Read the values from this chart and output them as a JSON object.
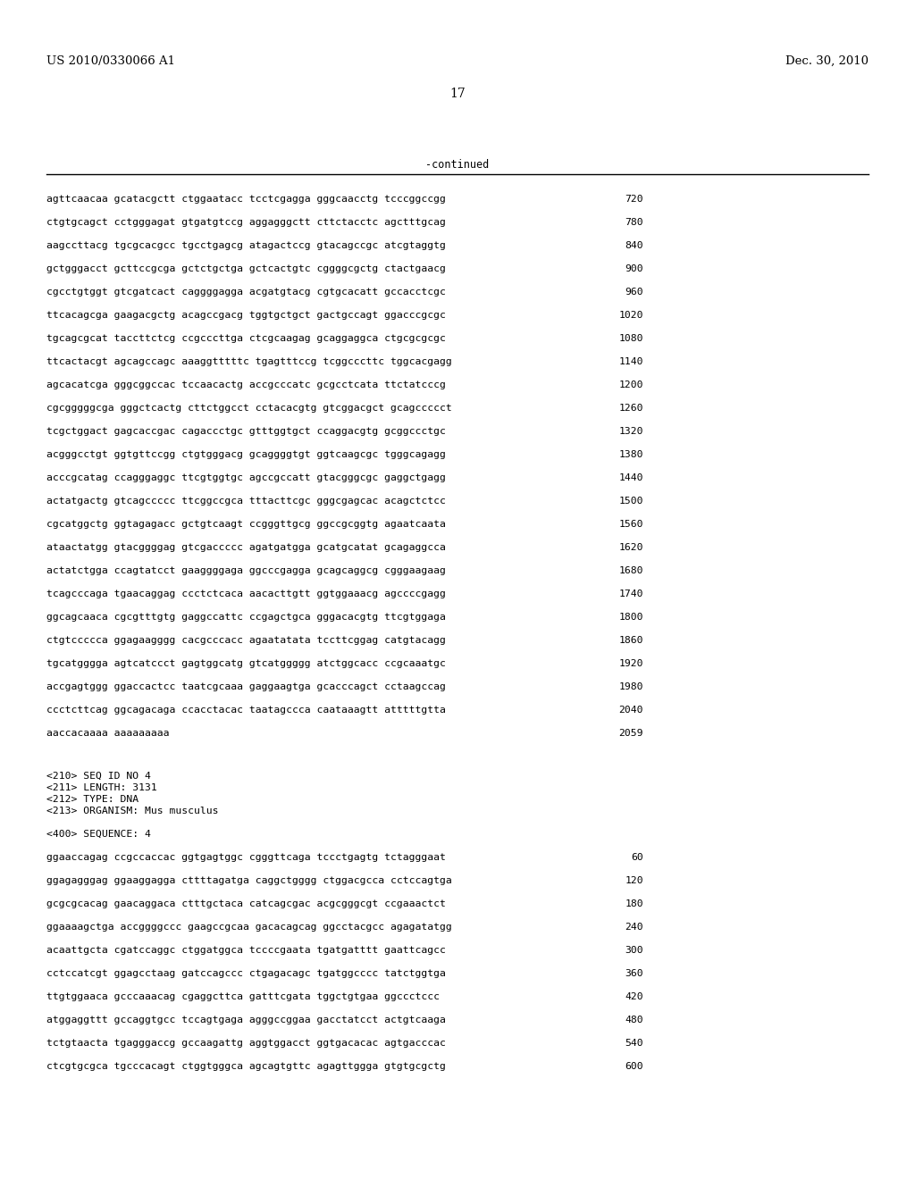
{
  "patent_number": "US 2010/0330066 A1",
  "date": "Dec. 30, 2010",
  "page_number": "17",
  "continued_label": "-continued",
  "background_color": "#ffffff",
  "text_color": "#000000",
  "sequence_lines": [
    {
      "seq": "agttcaacaa gcatacgctt ctggaatacc tcctcgagga gggcaacctg tcccggccgg",
      "num": "720"
    },
    {
      "seq": "ctgtgcagct cctgggagat gtgatgtccg aggagggctt cttctacctc agctttgcag",
      "num": "780"
    },
    {
      "seq": "aagccttacg tgcgcacgcc tgcctgagcg atagactccg gtacagccgc atcgtaggtg",
      "num": "840"
    },
    {
      "seq": "gctgggacct gcttccgcga gctctgctga gctcactgtc cggggcgctg ctactgaacg",
      "num": "900"
    },
    {
      "seq": "cgcctgtggt gtcgatcact caggggagga acgatgtacg cgtgcacatt gccacctcgc",
      "num": "960"
    },
    {
      "seq": "ttcacagcga gaagacgctg acagccgacg tggtgctgct gactgccagt ggacccgcgc",
      "num": "1020"
    },
    {
      "seq": "tgcagcgcat taccttctcg ccgcccttga ctcgcaagag gcaggaggca ctgcgcgcgc",
      "num": "1080"
    },
    {
      "seq": "ttcactacgt agcagccagc aaaggtttttc tgagtttccg tcggcccttc tggcacgagg",
      "num": "1140"
    },
    {
      "seq": "agcacatcga gggcggccac tccaacactg accgcccatc gcgcctcata ttctatcccg",
      "num": "1200"
    },
    {
      "seq": "cgcgggggcga gggctcactg cttctggcct cctacacgtg gtcggacgct gcagccccct",
      "num": "1260"
    },
    {
      "seq": "tcgctggact gagcaccgac cagaccctgc gtttggtgct ccaggacgtg gcggccctgc",
      "num": "1320"
    },
    {
      "seq": "acgggcctgt ggtgttccgg ctgtgggacg gcaggggtgt ggtcaagcgc tgggcagagg",
      "num": "1380"
    },
    {
      "seq": "acccgcatag ccagggaggc ttcgtggtgc agccgccatt gtacgggcgc gaggctgagg",
      "num": "1440"
    },
    {
      "seq": "actatgactg gtcagccccc ttcggccgca tttacttcgc gggcgagcac acagctctcc",
      "num": "1500"
    },
    {
      "seq": "cgcatggctg ggtagagacc gctgtcaagt ccgggttgcg ggccgcggtg agaatcaata",
      "num": "1560"
    },
    {
      "seq": "ataactatgg gtacggggag gtcgaccccc agatgatgga gcatgcatat gcagaggcca",
      "num": "1620"
    },
    {
      "seq": "actatctgga ccagtatcct gaaggggaga ggcccgagga gcagcaggcg cgggaagaag",
      "num": "1680"
    },
    {
      "seq": "tcagcccaga tgaacaggag ccctctcaca aacacttgtt ggtggaaacg agccccgagg",
      "num": "1740"
    },
    {
      "seq": "ggcagcaaca cgcgtttgtg gaggccattc ccgagctgca gggacacgtg ttcgtggaga",
      "num": "1800"
    },
    {
      "seq": "ctgtccccca ggagaagggg cacgcccacc agaatatata tccttcggag catgtacagg",
      "num": "1860"
    },
    {
      "seq": "tgcatgggga agtcatccct gagtggcatg gtcatggggg atctggcacc ccgcaaatgc",
      "num": "1920"
    },
    {
      "seq": "accgagtggg ggaccactcc taatcgcaaa gaggaagtga gcacccagct cctaagccag",
      "num": "1980"
    },
    {
      "seq": "ccctcttcag ggcagacaga ccacctacac taatagccca caataaagtt atttttgtta",
      "num": "2040"
    },
    {
      "seq": "aaccacaaaa aaaaaaaaa",
      "num": "2059"
    }
  ],
  "seq_info_lines": [
    "<210> SEQ ID NO 4",
    "<211> LENGTH: 3131",
    "<212> TYPE: DNA",
    "<213> ORGANISM: Mus musculus"
  ],
  "seq_400_label": "<400> SEQUENCE: 4",
  "dna_lines_400": [
    {
      "seq": "ggaaccagag ccgccaccac ggtgagtggc cgggttcaga tccctgagtg tctagggaat",
      "num": "60"
    },
    {
      "seq": "ggagagggag ggaaggagga cttttagatga caggctgggg ctggacgcca cctccagtga",
      "num": "120"
    },
    {
      "seq": "gcgcgcacag gaacaggaca ctttgctaca catcagcgac acgcgggcgt ccgaaactct",
      "num": "180"
    },
    {
      "seq": "ggaaaagctga accggggccc gaagccgcaa gacacagcag ggcctacgcc agagatatgg",
      "num": "240"
    },
    {
      "seq": "acaattgcta cgatccaggc ctggatggca tccccgaata tgatgatttt gaattcagcc",
      "num": "300"
    },
    {
      "seq": "cctccatcgt ggagcctaag gatccagccc ctgagacagc tgatggcccc tatctggtga",
      "num": "360"
    },
    {
      "seq": "ttgtggaaca gcccaaacag cgaggcttca gatttcgata tggctgtgaa ggccctccc",
      "num": "420"
    },
    {
      "seq": "atggaggttt gccaggtgcc tccagtgaga agggccggaa gacctatcct actgtcaaga",
      "num": "480"
    },
    {
      "seq": "tctgtaacta tgagggaccg gccaagattg aggtggacct ggtgacacac agtgacccac",
      "num": "540"
    },
    {
      "seq": "ctcgtgcgca tgcccacagt ctggtgggca agcagtgttc agagttggga gtgtgcgctg",
      "num": "600"
    }
  ]
}
